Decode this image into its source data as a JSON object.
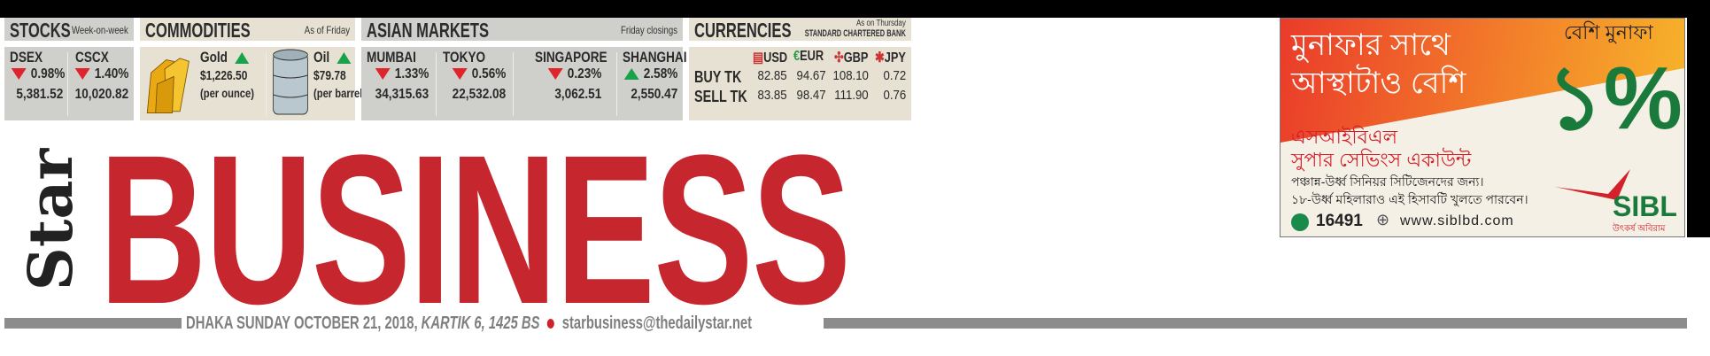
{
  "stocks": {
    "title": "STOCKS",
    "subtitle": "Week-on-week",
    "items": [
      {
        "name": "DSEX",
        "direction": "down",
        "change": "0.98%",
        "value": "5,381.52"
      },
      {
        "name": "CSCX",
        "direction": "down",
        "change": "1.40%",
        "value": "10,020.82"
      }
    ]
  },
  "commodities": {
    "title": "COMMODITIES",
    "subtitle": "As of Friday",
    "items": [
      {
        "name": "Gold",
        "direction": "up",
        "price": "$1,226.50",
        "unit": "(per ounce)",
        "icon": "gold-bars-icon"
      },
      {
        "name": "Oil",
        "direction": "up",
        "price": "$79.78",
        "unit": "(per barrel)",
        "icon": "oil-barrel-icon"
      }
    ]
  },
  "asian": {
    "title": "ASIAN MARKETS",
    "subtitle": "Friday closings",
    "items": [
      {
        "name": "MUMBAI",
        "direction": "down",
        "change": "1.33%",
        "value": "34,315.63"
      },
      {
        "name": "TOKYO",
        "direction": "down",
        "change": "0.56%",
        "value": "22,532.08"
      },
      {
        "name": "SINGAPORE",
        "direction": "down",
        "change": "0.23%",
        "value": "3,062.51"
      },
      {
        "name": "SHANGHAI",
        "direction": "up",
        "change": "2.58%",
        "value": "2,550.47"
      }
    ]
  },
  "currencies": {
    "title": "CURRENCIES",
    "subtitle1": "As on Thursday",
    "subtitle2": "STANDARD CHARTERED BANK",
    "columns": [
      "USD",
      "EUR",
      "GBP",
      "JPY"
    ],
    "rows": [
      {
        "label": "BUY TK",
        "values": [
          "82.85",
          "94.67",
          "108.10",
          "0.72"
        ]
      },
      {
        "label": "SELL TK",
        "values": [
          "83.85",
          "98.47",
          "111.90",
          "0.76"
        ]
      }
    ]
  },
  "masthead": {
    "logo": "Star",
    "title": "BUSINESS",
    "dateline": "DHAKA SUNDAY OCTOBER 21, 2018,",
    "bengali_date": "KARTIK 6, 1425 BS",
    "email": "starbusiness@thedailystar.net"
  },
  "ad": {
    "headline1": "মুনাফার সাথে",
    "headline2": "আস্থাটাও বেশি",
    "tag": "বেশি মুনাফা",
    "big": "১%",
    "product1": "এসআইবিএল",
    "product2": "সুপার সেভিংস একাউন্ট",
    "line1": "পঞ্চান্ন-উর্ধ্ব সিনিয়র সিটিজেনদের জন্য।",
    "line2": "১৮-উর্ধ্ব মহিলারাও এই হিসাবটি খুলতে পারবেন।",
    "phone": "16491",
    "website": "www.siblbd.com",
    "brand": "SIBL",
    "slogan": "উৎকর্ষ অবিরাম"
  },
  "colors": {
    "brand_red": "#c6262e",
    "down": "#e0242c",
    "up": "#1aa24a",
    "ad_green": "#1a7a3c"
  }
}
